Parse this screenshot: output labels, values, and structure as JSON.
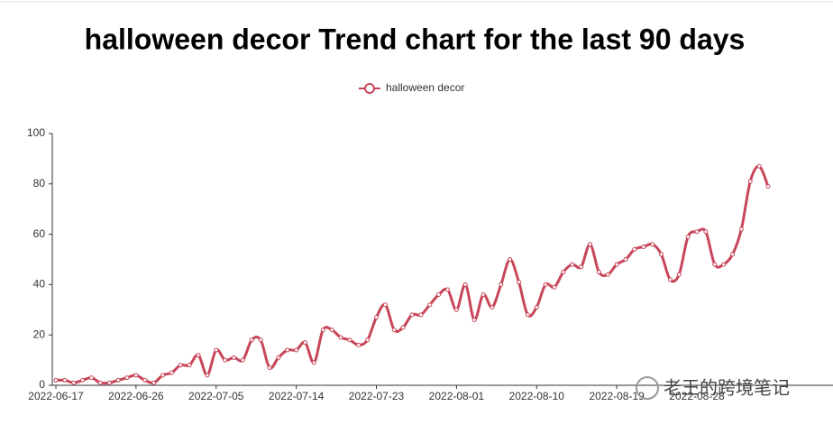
{
  "chart_data": {
    "type": "line",
    "title": "halloween decor Trend chart for the last 90 days",
    "categories": [
      "2022-06-17",
      null,
      null,
      null,
      null,
      null,
      null,
      null,
      null,
      "2022-06-26",
      null,
      null,
      null,
      null,
      null,
      null,
      null,
      null,
      "2022-07-05",
      null,
      null,
      null,
      null,
      null,
      null,
      null,
      null,
      "2022-07-14",
      null,
      null,
      null,
      null,
      null,
      null,
      null,
      null,
      "2022-07-23",
      null,
      null,
      null,
      null,
      null,
      null,
      null,
      null,
      "2022-08-01",
      null,
      null,
      null,
      null,
      null,
      null,
      null,
      null,
      "2022-08-10",
      null,
      null,
      null,
      null,
      null,
      null,
      null,
      null,
      "2022-08-19",
      null,
      null,
      null,
      null,
      null,
      null,
      null,
      null,
      "2022-08-28",
      null,
      null,
      null,
      null,
      null,
      null,
      null,
      null
    ],
    "series": [
      {
        "name": "halloween decor",
        "color": "#c8465a",
        "values": [
          2,
          2,
          1,
          2,
          3,
          1,
          1,
          2,
          3,
          4,
          2,
          1,
          4,
          5,
          8,
          8,
          12,
          4,
          14,
          10,
          11,
          10,
          18,
          18,
          7,
          11,
          14,
          14,
          17,
          9,
          22,
          22,
          19,
          18,
          16,
          18,
          27,
          32,
          22,
          23,
          28,
          28,
          32,
          36,
          38,
          30,
          40,
          26,
          36,
          31,
          40,
          50,
          41,
          28,
          31,
          40,
          39,
          45,
          48,
          47,
          56,
          45,
          44,
          48,
          50,
          54,
          55,
          56,
          52,
          42,
          44,
          59,
          61,
          61,
          48,
          48,
          52,
          62,
          81,
          87,
          79
        ]
      }
    ],
    "ylim": [
      0,
      100
    ],
    "yticks": [
      0,
      20,
      40,
      60,
      80,
      100
    ],
    "smooth": true,
    "legend": "top",
    "watermark": "老王的跨境笔记"
  }
}
